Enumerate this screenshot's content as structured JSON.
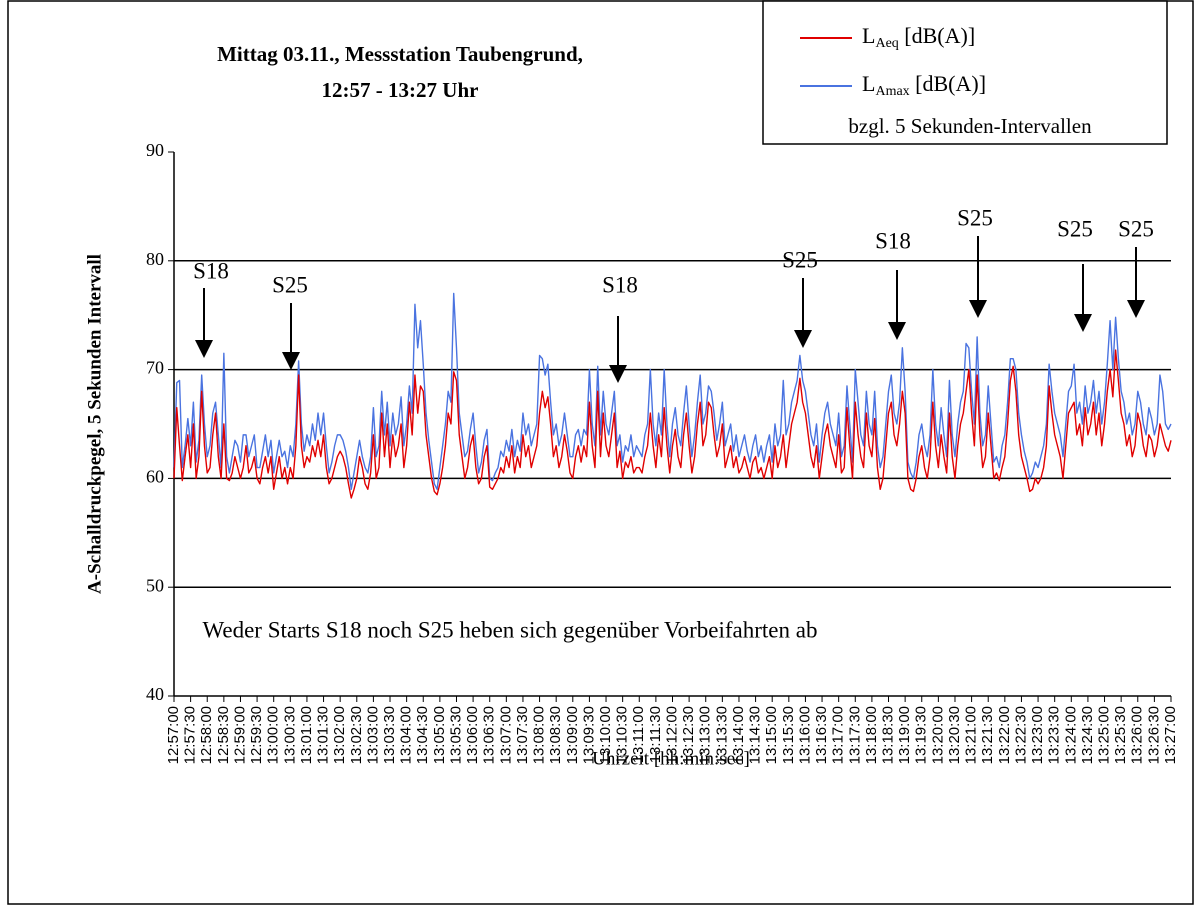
{
  "chart_data": {
    "type": "line",
    "title": [
      "Mittag 03.11., Messstation Taubengrund,",
      "12:57 - 13:27 Uhr"
    ],
    "x_label": "Uhrzeit [hh:min:sec]",
    "y_label": "A-Schalldruckpegel, 5 Sekunden Intervall",
    "legend_note": "bzgl. 5 Sekunden-Intervallen",
    "legend": "top-right",
    "grid": true,
    "ylim": [
      40,
      90
    ],
    "yticks": [
      40,
      50,
      60,
      70,
      80,
      90
    ],
    "note": "Weder Starts S18 noch S25 heben sich gegenüber Vorbeifahrten ab",
    "annotations": [
      "S18",
      "S25",
      "S18",
      "S25",
      "S18",
      "S25",
      "S25",
      "S25"
    ],
    "categories": [
      "12:57:00",
      null,
      null,
      null,
      null,
      null,
      "12:57:30",
      null,
      null,
      null,
      null,
      null,
      "12:58:00",
      null,
      null,
      null,
      null,
      null,
      "12:58:30",
      null,
      null,
      null,
      null,
      null,
      "12:59:00",
      null,
      null,
      null,
      null,
      null,
      "12:59:30",
      null,
      null,
      null,
      null,
      null,
      "13:00:00",
      null,
      null,
      null,
      null,
      null,
      "13:00:30",
      null,
      null,
      null,
      null,
      null,
      "13:01:00",
      null,
      null,
      null,
      null,
      null,
      "13:01:30",
      null,
      null,
      null,
      null,
      null,
      "13:02:00",
      null,
      null,
      null,
      null,
      null,
      "13:02:30",
      null,
      null,
      null,
      null,
      null,
      "13:03:00",
      null,
      null,
      null,
      null,
      null,
      "13:03:30",
      null,
      null,
      null,
      null,
      null,
      "13:04:00",
      null,
      null,
      null,
      null,
      null,
      "13:04:30",
      null,
      null,
      null,
      null,
      null,
      "13:05:00",
      null,
      null,
      null,
      null,
      null,
      "13:05:30",
      null,
      null,
      null,
      null,
      null,
      "13:06:00",
      null,
      null,
      null,
      null,
      null,
      "13:06:30",
      null,
      null,
      null,
      null,
      null,
      "13:07:00",
      null,
      null,
      null,
      null,
      null,
      "13:07:30",
      null,
      null,
      null,
      null,
      null,
      "13:08:00",
      null,
      null,
      null,
      null,
      null,
      "13:08:30",
      null,
      null,
      null,
      null,
      null,
      "13:09:00",
      null,
      null,
      null,
      null,
      null,
      "13:09:30",
      null,
      null,
      null,
      null,
      null,
      "13:10:00",
      null,
      null,
      null,
      null,
      null,
      "13:10:30",
      null,
      null,
      null,
      null,
      null,
      "13:11:00",
      null,
      null,
      null,
      null,
      null,
      "13:11:30",
      null,
      null,
      null,
      null,
      null,
      "13:12:00",
      null,
      null,
      null,
      null,
      null,
      "13:12:30",
      null,
      null,
      null,
      null,
      null,
      "13:13:00",
      null,
      null,
      null,
      null,
      null,
      "13:13:30",
      null,
      null,
      null,
      null,
      null,
      "13:14:00",
      null,
      null,
      null,
      null,
      null,
      "13:14:30",
      null,
      null,
      null,
      null,
      null,
      "13:15:00",
      null,
      null,
      null,
      null,
      null,
      "13:15:30",
      null,
      null,
      null,
      null,
      null,
      "13:16:00",
      null,
      null,
      null,
      null,
      null,
      "13:16:30",
      null,
      null,
      null,
      null,
      null,
      "13:17:00",
      null,
      null,
      null,
      null,
      null,
      "13:17:30",
      null,
      null,
      null,
      null,
      null,
      "13:18:00",
      null,
      null,
      null,
      null,
      null,
      "13:18:30",
      null,
      null,
      null,
      null,
      null,
      "13:19:00",
      null,
      null,
      null,
      null,
      null,
      "13:19:30",
      null,
      null,
      null,
      null,
      null,
      "13:20:00",
      null,
      null,
      null,
      null,
      null,
      "13:20:30",
      null,
      null,
      null,
      null,
      null,
      "13:21:00",
      null,
      null,
      null,
      null,
      null,
      "13:21:30",
      null,
      null,
      null,
      null,
      null,
      "13:22:00",
      null,
      null,
      null,
      null,
      null,
      "13:22:30",
      null,
      null,
      null,
      null,
      null,
      "13:23:00",
      null,
      null,
      null,
      null,
      null,
      "13:23:30",
      null,
      null,
      null,
      null,
      null,
      "13:24:00",
      null,
      null,
      null,
      null,
      null,
      "13:24:30",
      null,
      null,
      null,
      null,
      null,
      "13:25:00",
      null,
      null,
      null,
      null,
      null,
      "13:25:30",
      null,
      null,
      null,
      null,
      null,
      "13:26:00",
      null,
      null,
      null,
      null,
      null,
      "13:26:30",
      null,
      null,
      null,
      null,
      null,
      "13:27:00"
    ],
    "series": [
      {
        "name": "LAeq [dB(A)]",
        "color": "#e00000",
        "values": [
          60,
          66.5,
          63,
          59.8,
          62,
          64,
          61,
          65,
          60,
          62,
          68,
          63,
          60.5,
          61,
          64,
          66,
          62,
          60,
          65,
          60,
          59.8,
          60.5,
          62,
          61,
          60,
          61,
          63,
          60.5,
          61,
          62,
          60,
          59.5,
          61,
          62,
          60.5,
          62,
          59,
          60.5,
          62,
          60,
          61,
          59.5,
          61,
          60,
          63,
          69.5,
          63,
          61,
          62,
          61.5,
          63,
          62,
          63.5,
          62,
          64,
          61,
          59.5,
          60,
          61,
          62,
          62.5,
          62,
          61,
          59.5,
          58.2,
          59,
          60,
          62,
          61,
          59.5,
          59,
          60.5,
          64,
          60,
          61,
          66,
          62,
          65,
          61,
          64,
          62,
          63,
          65,
          61,
          63,
          67,
          64,
          69.5,
          66,
          68.5,
          68,
          64,
          62,
          60,
          58.8,
          58.5,
          59.5,
          61,
          63,
          66,
          65,
          69.8,
          69,
          64,
          62,
          60,
          61,
          63,
          64,
          61,
          59.5,
          60,
          62,
          63,
          59.2,
          59,
          59.5,
          60,
          61,
          60.5,
          62,
          61,
          63,
          60.5,
          62,
          61,
          64,
          62,
          63,
          61,
          62,
          63,
          66,
          68,
          66.5,
          67.5,
          65,
          62,
          63,
          61,
          62,
          64,
          62.5,
          60.5,
          60,
          62,
          63,
          61.5,
          63,
          62,
          67,
          63,
          61,
          68,
          62,
          66,
          63,
          62,
          64,
          66,
          61,
          62.5,
          60,
          61.5,
          61,
          62,
          60.5,
          61,
          61,
          60.5,
          62,
          63,
          66,
          63,
          61,
          64,
          62,
          66.5,
          63,
          60.5,
          63,
          64.5,
          62,
          61,
          64,
          66,
          63,
          60.5,
          62,
          65,
          67,
          63,
          64,
          67,
          66.5,
          64,
          62,
          63,
          65,
          61,
          62,
          63,
          61,
          62,
          60.5,
          61,
          62,
          61,
          60,
          61.5,
          62,
          60.5,
          61,
          60,
          61,
          62,
          60,
          63,
          61,
          62,
          64,
          61,
          63,
          65,
          66,
          67,
          69.2,
          67,
          66,
          64,
          62,
          61,
          63,
          60,
          62,
          64,
          65,
          63,
          62,
          61,
          64,
          60.5,
          61,
          66.5,
          63,
          60,
          67,
          64,
          62,
          61,
          66,
          63,
          62,
          65.5,
          61,
          59,
          60,
          63,
          66,
          67,
          64,
          63,
          65,
          68,
          66,
          60,
          59,
          58.8,
          60,
          62,
          63,
          61,
          60,
          62,
          67,
          63,
          61,
          64,
          62,
          60.5,
          66,
          62,
          60,
          63,
          65,
          66,
          68,
          70,
          66,
          63,
          69.5,
          64,
          61,
          62,
          66,
          63,
          60,
          60.5,
          59.8,
          61,
          62,
          65,
          69,
          70.3,
          68,
          64,
          62,
          61,
          60,
          58.8,
          59,
          60,
          59.5,
          60,
          61,
          63,
          68.5,
          66,
          64,
          63,
          62,
          60,
          63,
          66,
          66.5,
          67,
          64,
          65,
          63,
          66.5,
          64,
          65,
          67,
          64,
          66,
          63,
          65,
          68,
          70,
          67.5,
          71.8,
          69,
          66,
          65,
          63,
          64,
          62,
          63,
          66,
          65,
          63,
          62,
          64,
          63.5,
          62,
          63,
          65,
          64,
          63,
          62.5,
          63.5
        ]
      },
      {
        "name": "LAmax [dB(A)]",
        "color": "#4a73e0",
        "values": [
          61,
          68.8,
          69,
          61,
          63,
          65.5,
          63,
          67,
          61.5,
          63.5,
          69.5,
          65,
          62,
          63,
          66,
          67,
          64,
          61,
          71.5,
          62,
          60.5,
          62,
          63.5,
          63,
          61.5,
          64,
          64,
          62,
          63,
          64,
          61,
          61,
          62.5,
          64,
          62,
          63.5,
          60.5,
          62,
          63.5,
          62,
          62.5,
          61,
          63,
          62,
          65,
          70.8,
          65,
          62.5,
          64,
          63,
          65,
          63.5,
          66,
          64,
          66,
          63,
          60.5,
          61.5,
          63,
          64,
          64,
          63.5,
          62.5,
          61,
          59,
          60.5,
          62,
          63.5,
          62,
          61,
          60.5,
          62,
          66.5,
          62,
          63,
          68,
          64,
          67,
          63,
          66,
          64,
          65,
          67.5,
          63,
          65,
          68.5,
          66,
          76,
          72,
          74.5,
          70.5,
          66,
          63.5,
          61.5,
          59.5,
          59,
          61,
          63,
          65,
          68,
          67,
          77,
          72,
          66,
          64,
          62,
          62.5,
          64.5,
          66,
          63,
          60.5,
          61.5,
          63.5,
          64.5,
          60,
          59.8,
          60.5,
          61,
          62.5,
          62,
          63.5,
          62.5,
          64.5,
          62,
          63.5,
          62.5,
          66,
          64,
          65,
          63,
          64,
          65,
          71.3,
          71,
          69.5,
          70.5,
          67,
          64,
          65,
          63,
          64,
          66,
          64,
          62,
          62,
          64,
          64.5,
          63,
          64.5,
          64,
          70,
          65,
          63,
          70.3,
          64,
          68,
          65,
          64,
          66,
          68,
          63,
          64,
          61.5,
          63,
          62.5,
          64,
          62,
          63,
          62.5,
          62,
          64,
          65,
          70,
          65,
          63,
          66,
          64,
          70,
          65,
          62,
          65,
          66.5,
          64,
          63,
          66,
          68.5,
          65,
          62,
          64,
          67,
          69.5,
          65,
          66,
          68.5,
          68,
          66,
          63.5,
          65,
          67,
          63,
          64,
          65,
          62.5,
          64,
          62,
          63,
          64,
          62.5,
          61.5,
          63,
          64,
          62,
          63,
          61.5,
          63,
          64,
          61.5,
          65,
          63,
          64,
          69,
          64,
          65,
          67,
          68,
          69,
          71.3,
          69,
          68,
          66,
          64,
          63,
          65,
          61.5,
          64,
          66,
          67,
          65,
          64,
          63,
          66,
          62,
          63,
          68.5,
          65,
          61.5,
          70,
          67,
          64,
          63,
          68,
          65,
          64,
          68,
          63,
          61,
          62,
          65,
          68,
          69.5,
          66,
          65,
          67,
          72,
          68,
          61.5,
          60.5,
          60,
          61.5,
          64,
          65,
          63,
          62,
          64,
          70,
          65,
          63,
          66.5,
          64,
          62,
          69,
          64,
          62,
          65,
          67,
          68,
          72.4,
          72,
          68,
          65,
          73,
          66,
          63,
          64,
          68.5,
          65,
          61.5,
          62,
          61,
          63,
          64,
          67,
          71,
          71,
          70,
          66,
          64,
          62.5,
          61.5,
          60,
          60.5,
          61.5,
          61,
          62,
          63,
          65,
          70.5,
          68,
          66,
          65,
          64,
          62,
          65,
          68,
          68.5,
          70.5,
          66,
          67,
          65,
          68.5,
          66,
          67,
          69,
          66,
          68,
          65,
          67,
          70.5,
          74.5,
          70,
          74.8,
          71,
          68,
          67,
          65,
          66,
          64,
          65,
          68,
          67,
          65,
          64,
          66.5,
          65.5,
          64,
          65,
          69.5,
          68,
          65,
          64.5,
          65
        ]
      }
    ]
  }
}
